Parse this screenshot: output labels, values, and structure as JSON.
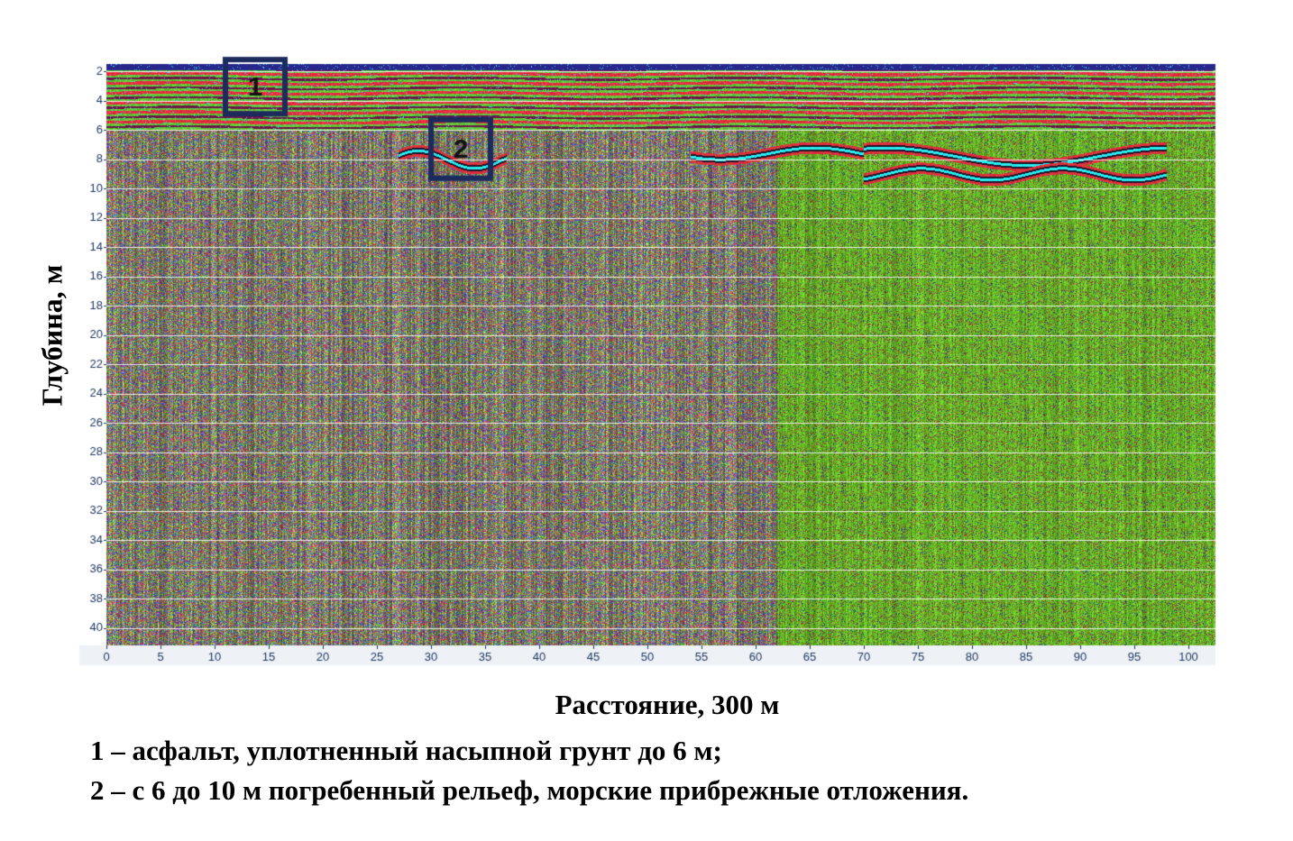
{
  "chart_data": {
    "type": "heatmap",
    "title": "",
    "xlabel": "Расстояние, 300 м",
    "ylabel": "Глубина, м",
    "x_ticks": [
      "0",
      "5",
      "10",
      "15",
      "20",
      "25",
      "30",
      "35",
      "40",
      "45",
      "50",
      "55",
      "60",
      "65",
      "70",
      "75",
      "80",
      "85",
      "90",
      "95",
      "100"
    ],
    "y_ticks": [
      "2",
      "4",
      "6",
      "8",
      "10",
      "12",
      "14",
      "16",
      "18",
      "20",
      "22",
      "24",
      "26",
      "28",
      "30",
      "32",
      "34",
      "36",
      "38",
      "40"
    ],
    "xlim": [
      0,
      102.5
    ],
    "ylim": [
      1.5,
      41.2
    ],
    "grid": true,
    "colormap": [
      "#2a3a9a",
      "#9a2a6a",
      "#d0203a",
      "#6fbf2a",
      "#9fe03a",
      "#40d8f0"
    ],
    "annotations": [
      {
        "label": "1",
        "x_range": [
          11,
          16.5
        ],
        "depth_range": [
          1.2,
          4.9
        ]
      },
      {
        "label": "2",
        "x_range": [
          30,
          35.5
        ],
        "depth_range": [
          5.3,
          9.3
        ]
      }
    ],
    "zones": [
      {
        "name": "asphalt_fill",
        "depth_range": [
          1.5,
          6
        ]
      },
      {
        "name": "buried_relief",
        "depth_range": [
          6,
          10
        ]
      },
      {
        "x_range": [
          0,
          62
        ],
        "noise": "mixed"
      },
      {
        "x_range": [
          62,
          102.5
        ],
        "noise": "green"
      }
    ]
  },
  "legend": {
    "item1": "1 – асфальт, уплотненный насыпной грунт до 6 м;",
    "item2": "2 – с 6 до 10 м погребенный рельеф, морские прибрежные отложения."
  }
}
